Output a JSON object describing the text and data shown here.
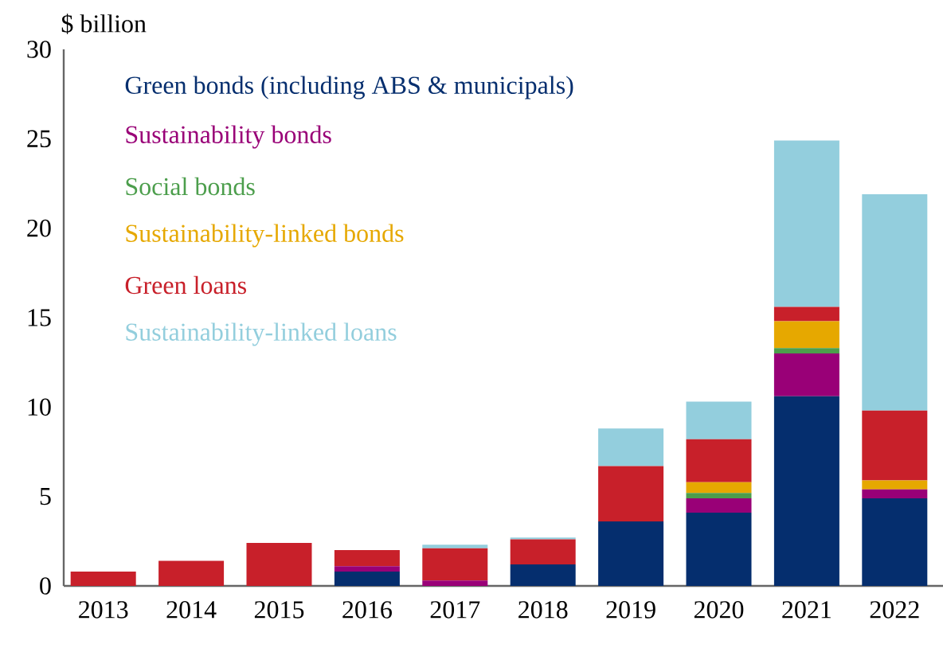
{
  "chart_data": {
    "type": "bar",
    "stacked": true,
    "ylabel": "$ billion",
    "categories": [
      "2013",
      "2014",
      "2015",
      "2016",
      "2017",
      "2018",
      "2019",
      "2020",
      "2021",
      "2022"
    ],
    "series": [
      {
        "name": "Green bonds (including ABS & municipals)",
        "color": "#052e6e",
        "values": [
          null,
          null,
          null,
          0.8,
          null,
          1.2,
          3.6,
          4.1,
          10.6,
          4.9
        ]
      },
      {
        "name": "Sustainability bonds",
        "color": "#990077",
        "values": [
          null,
          null,
          null,
          0.3,
          0.3,
          null,
          null,
          0.8,
          2.4,
          0.5
        ]
      },
      {
        "name": "Social bonds",
        "color": "#4c9e4c",
        "values": [
          null,
          null,
          null,
          null,
          null,
          null,
          null,
          0.3,
          0.3,
          null
        ]
      },
      {
        "name": "Sustainability-linked bonds",
        "color": "#e6a800",
        "values": [
          null,
          null,
          null,
          null,
          null,
          null,
          null,
          0.6,
          1.5,
          0.5
        ]
      },
      {
        "name": "Green loans",
        "color": "#c8202a",
        "values": [
          0.8,
          1.4,
          2.4,
          0.9,
          1.8,
          1.4,
          3.1,
          2.4,
          0.8,
          3.9
        ]
      },
      {
        "name": "Sustainability-linked loans",
        "color": "#93cedd",
        "values": [
          null,
          null,
          null,
          null,
          0.2,
          0.1,
          2.1,
          2.1,
          9.3,
          12.1
        ]
      }
    ],
    "ylim": [
      0,
      30
    ],
    "yticks": [
      0,
      5,
      10,
      15,
      20,
      25,
      30
    ],
    "legend": "top left"
  }
}
